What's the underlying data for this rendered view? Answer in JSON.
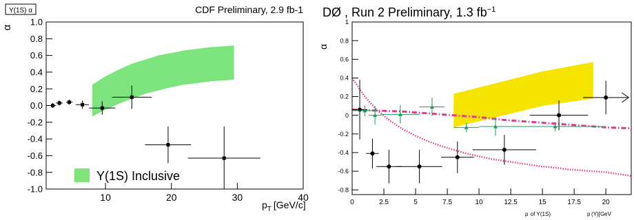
{
  "chart_data": [
    {
      "type": "scatter",
      "title": "CDF Preliminary, 2.9 fb-1",
      "corner_label": "Υ(1S)  α",
      "ylabel": "α",
      "xlabel": "p",
      "xlabel_sub": "T",
      "xlabel_unit": "[GeV/c]",
      "xlim": [
        1,
        40
      ],
      "ylim": [
        -1.0,
        1.0
      ],
      "x_ticks": [
        10,
        20,
        30,
        40
      ],
      "y_ticks": [
        -1.0,
        -0.8,
        -0.6,
        -0.4,
        -0.2,
        0.0,
        0.2,
        0.4,
        0.6,
        0.8,
        1.0
      ],
      "y_tick_labels": [
        "-1.0",
        "-0.8",
        "-0.6",
        "-0.4",
        "-0.2",
        "0.0",
        "0.2",
        "0.4",
        "0.6",
        "0.8",
        "1.0"
      ],
      "legend": {
        "label": "Υ(1S) Inclusive",
        "color": "#7ee57e",
        "placement": "bottom-left"
      },
      "band": {
        "color": "#7ee57e",
        "x": [
          8,
          10,
          12,
          14,
          16,
          18,
          20,
          22,
          24,
          26,
          28,
          29.5
        ],
        "upper": [
          0.25,
          0.35,
          0.43,
          0.5,
          0.55,
          0.6,
          0.63,
          0.66,
          0.68,
          0.7,
          0.71,
          0.72
        ],
        "lower": [
          -0.13,
          -0.05,
          0.02,
          0.08,
          0.14,
          0.18,
          0.22,
          0.25,
          0.27,
          0.29,
          0.3,
          0.31
        ]
      },
      "series": [
        {
          "marker": "square",
          "color": "#000000",
          "points": [
            {
              "x": 2.0,
              "y": 0.0,
              "xerr": 0.5,
              "yerr": 0.03
            },
            {
              "x": 3.0,
              "y": 0.03,
              "xerr": 0.5,
              "yerr": 0.03
            },
            {
              "x": 4.5,
              "y": 0.04,
              "xerr": 0.5,
              "yerr": 0.03
            },
            {
              "x": 6.5,
              "y": 0.01,
              "xerr": 1.0,
              "yerr": 0.05
            },
            {
              "x": 9.5,
              "y": -0.03,
              "xerr": 2.0,
              "yerr": 0.08
            },
            {
              "x": 14.0,
              "y": 0.1,
              "xerr": 3.0,
              "yerr": 0.14
            },
            {
              "x": 19.5,
              "y": -0.47,
              "xerr": 3.5,
              "yerr": 0.22
            },
            {
              "x": 28.0,
              "y": -0.63,
              "xerr": 5.5,
              "yerr": 0.38
            }
          ]
        }
      ]
    },
    {
      "type": "scatter",
      "title": "DØ , Run 2 Preliminary, 1.3 fb",
      "title_sup": "−1",
      "ylabel": "α",
      "xlim": [
        0,
        22
      ],
      "ylim": [
        -0.85,
        1.0
      ],
      "x_ticks": [
        0,
        2.5,
        5,
        7.5,
        10,
        12.5,
        15,
        17.5,
        20
      ],
      "x_tick_labels": [
        "0",
        "2.5",
        "5",
        "7.5",
        "10",
        "12.5",
        "15",
        "17.5",
        "20"
      ],
      "y_ticks": [
        -0.8,
        -0.6,
        -0.4,
        -0.2,
        0,
        0.2,
        0.4,
        0.6,
        0.8,
        1
      ],
      "y_tick_labels": [
        "-0.8",
        "-0.6",
        "-0.4",
        "-0.2",
        "0",
        "0.2",
        "0.4",
        "0.6",
        "0.8",
        "1"
      ],
      "x_footer_labels": [
        "p  of Υ(1S)",
        "p (Υ)[GeV"
      ],
      "band": {
        "color": "#f5e400",
        "x": [
          8,
          15,
          19
        ],
        "upper": [
          0.23,
          0.47,
          0.57
        ],
        "lower": [
          -0.13,
          0.1,
          0.18
        ]
      },
      "curves": [
        {
          "style": "dotted",
          "color": "#e0398e",
          "x": [
            0,
            1,
            2,
            3,
            4,
            5,
            6,
            7,
            8,
            9,
            10,
            11,
            12,
            13,
            14,
            15,
            16,
            17,
            18,
            19,
            20,
            21,
            22
          ],
          "y": [
            0.4,
            0.2,
            0.05,
            -0.06,
            -0.15,
            -0.22,
            -0.28,
            -0.33,
            -0.37,
            -0.41,
            -0.44,
            -0.47,
            -0.49,
            -0.51,
            -0.53,
            -0.55,
            -0.56,
            -0.58,
            -0.59,
            -0.6,
            -0.61,
            -0.63,
            -0.65
          ]
        },
        {
          "style": "dashdot",
          "color": "#e0398e",
          "x": [
            0,
            2,
            4,
            6,
            8,
            10,
            12,
            14,
            16,
            18,
            20,
            22
          ],
          "y": [
            0.06,
            0.05,
            0.04,
            0.02,
            0.0,
            -0.02,
            -0.05,
            -0.07,
            -0.09,
            -0.11,
            -0.13,
            -0.14
          ]
        }
      ],
      "series": [
        {
          "marker": "circle",
          "color": "#000000",
          "points": [
            {
              "x": 0.6,
              "y": 0.06,
              "xerr": 0.6,
              "yerr": 0.32
            },
            {
              "x": 1.6,
              "y": -0.41,
              "xerr": 0.5,
              "yerr": 0.16
            },
            {
              "x": 2.9,
              "y": -0.55,
              "xerr": 1.0,
              "yerr": 0.18
            },
            {
              "x": 5.3,
              "y": -0.55,
              "xerr": 1.8,
              "yerr": 0.18
            },
            {
              "x": 8.3,
              "y": -0.45,
              "xerr": 1.3,
              "yerr": 0.17
            },
            {
              "x": 12.0,
              "y": -0.37,
              "xerr": 2.5,
              "yerr": 0.16
            },
            {
              "x": 16.3,
              "y": 0.0,
              "xerr": 2.3,
              "yerr": 0.16
            },
            {
              "x": 20.0,
              "y": 0.19,
              "xerr": 1.8,
              "yerr": 0.18
            }
          ]
        },
        {
          "marker": "triangle",
          "color": "#1a9e5c",
          "points": [
            {
              "x": 1.0,
              "y": 0.05,
              "xerr": 1.0,
              "yerr": 0.06
            },
            {
              "x": 1.8,
              "y": 0.0,
              "xerr": 0.5,
              "yerr": 0.1
            },
            {
              "x": 3.8,
              "y": 0.01,
              "xerr": 1.5,
              "yerr": 0.1
            },
            {
              "x": 6.3,
              "y": 0.09,
              "xerr": 1.0,
              "yerr": 0.1
            },
            {
              "x": 9.0,
              "y": -0.13,
              "xerr": 1.0,
              "yerr": 0.05
            },
            {
              "x": 11.3,
              "y": -0.12,
              "xerr": 1.3,
              "yerr": 0.1
            },
            {
              "x": 16.0,
              "y": -0.12,
              "xerr": 4.0,
              "yerr": 0.05
            }
          ]
        }
      ]
    }
  ]
}
